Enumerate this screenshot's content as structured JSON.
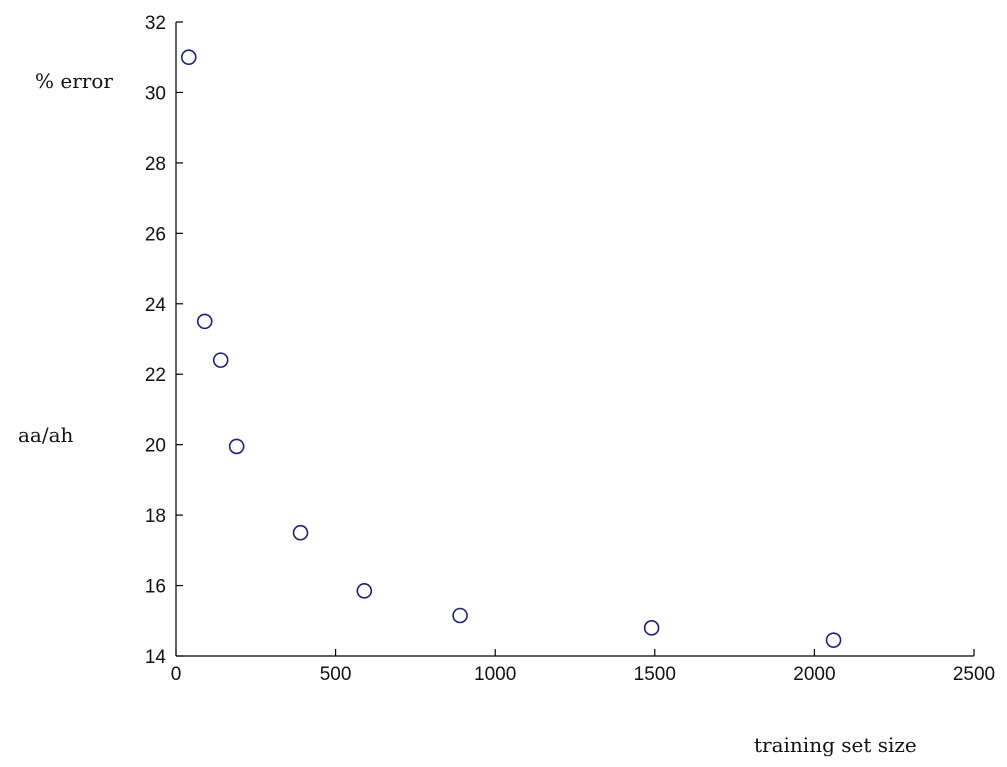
{
  "chart_data": {
    "type": "scatter",
    "title": "",
    "xlabel": "training set size",
    "ylabel": "% error",
    "ylabel_secondary": "aa/ah",
    "xlim": [
      0,
      2500
    ],
    "ylim": [
      14,
      32
    ],
    "xticks": [
      0,
      500,
      1000,
      1500,
      2000,
      2500
    ],
    "yticks": [
      14,
      16,
      18,
      20,
      22,
      24,
      26,
      28,
      30,
      32
    ],
    "grid": false,
    "legend": "none",
    "marker_color": "#1f1f7a",
    "series": [
      {
        "x": [
          40,
          90,
          140,
          190,
          390,
          590,
          890,
          1490,
          2060
        ],
        "y": [
          31.0,
          23.5,
          22.4,
          19.95,
          17.5,
          15.85,
          15.15,
          14.8,
          14.45
        ]
      }
    ]
  }
}
